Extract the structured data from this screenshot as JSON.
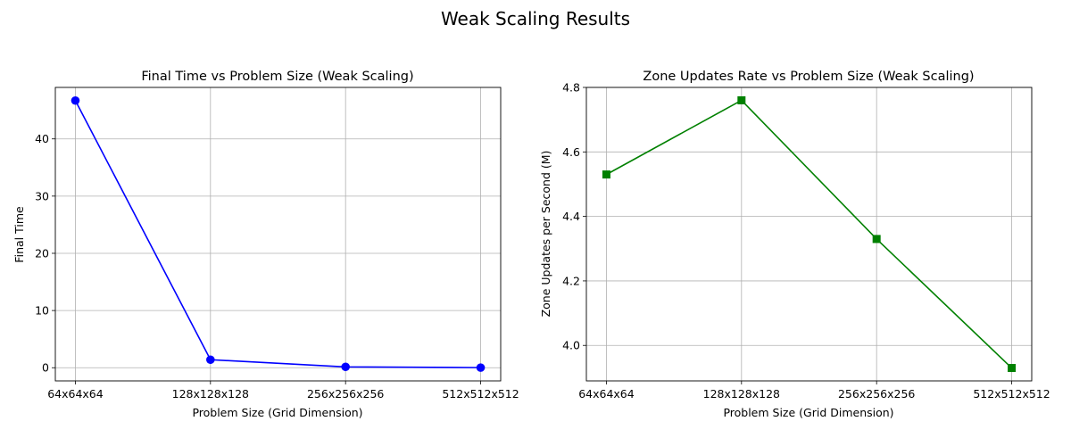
{
  "figure": {
    "suptitle": "Weak Scaling Results"
  },
  "chart_data": [
    {
      "type": "line",
      "title": "Final Time vs Problem Size (Weak Scaling)",
      "xlabel": "Problem Size (Grid Dimension)",
      "ylabel": "Final Time",
      "categories": [
        "64x64x64",
        "128x128x128",
        "256x256x256",
        "512x512x512"
      ],
      "values": [
        46.7,
        1.4,
        0.15,
        0.02
      ],
      "ylim": [
        -2.3,
        49.0
      ],
      "yticks": [
        0,
        10,
        20,
        30,
        40
      ],
      "grid": true,
      "marker": "circle",
      "color": "#0000ff"
    },
    {
      "type": "line",
      "title": "Zone Updates Rate vs Problem Size (Weak Scaling)",
      "xlabel": "Problem Size (Grid Dimension)",
      "ylabel": "Zone Updates per Second (M)",
      "categories": [
        "64x64x64",
        "128x128x128",
        "256x256x256",
        "512x512x512"
      ],
      "values": [
        4.53,
        4.76,
        4.33,
        3.93
      ],
      "ylim": [
        3.89,
        4.8
      ],
      "yticks": [
        4.0,
        4.2,
        4.4,
        4.6,
        4.8
      ],
      "ytick_labels": [
        "4.0",
        "4.2",
        "4.4",
        "4.6",
        "4.8"
      ],
      "grid": true,
      "marker": "square",
      "color": "#008000"
    }
  ]
}
